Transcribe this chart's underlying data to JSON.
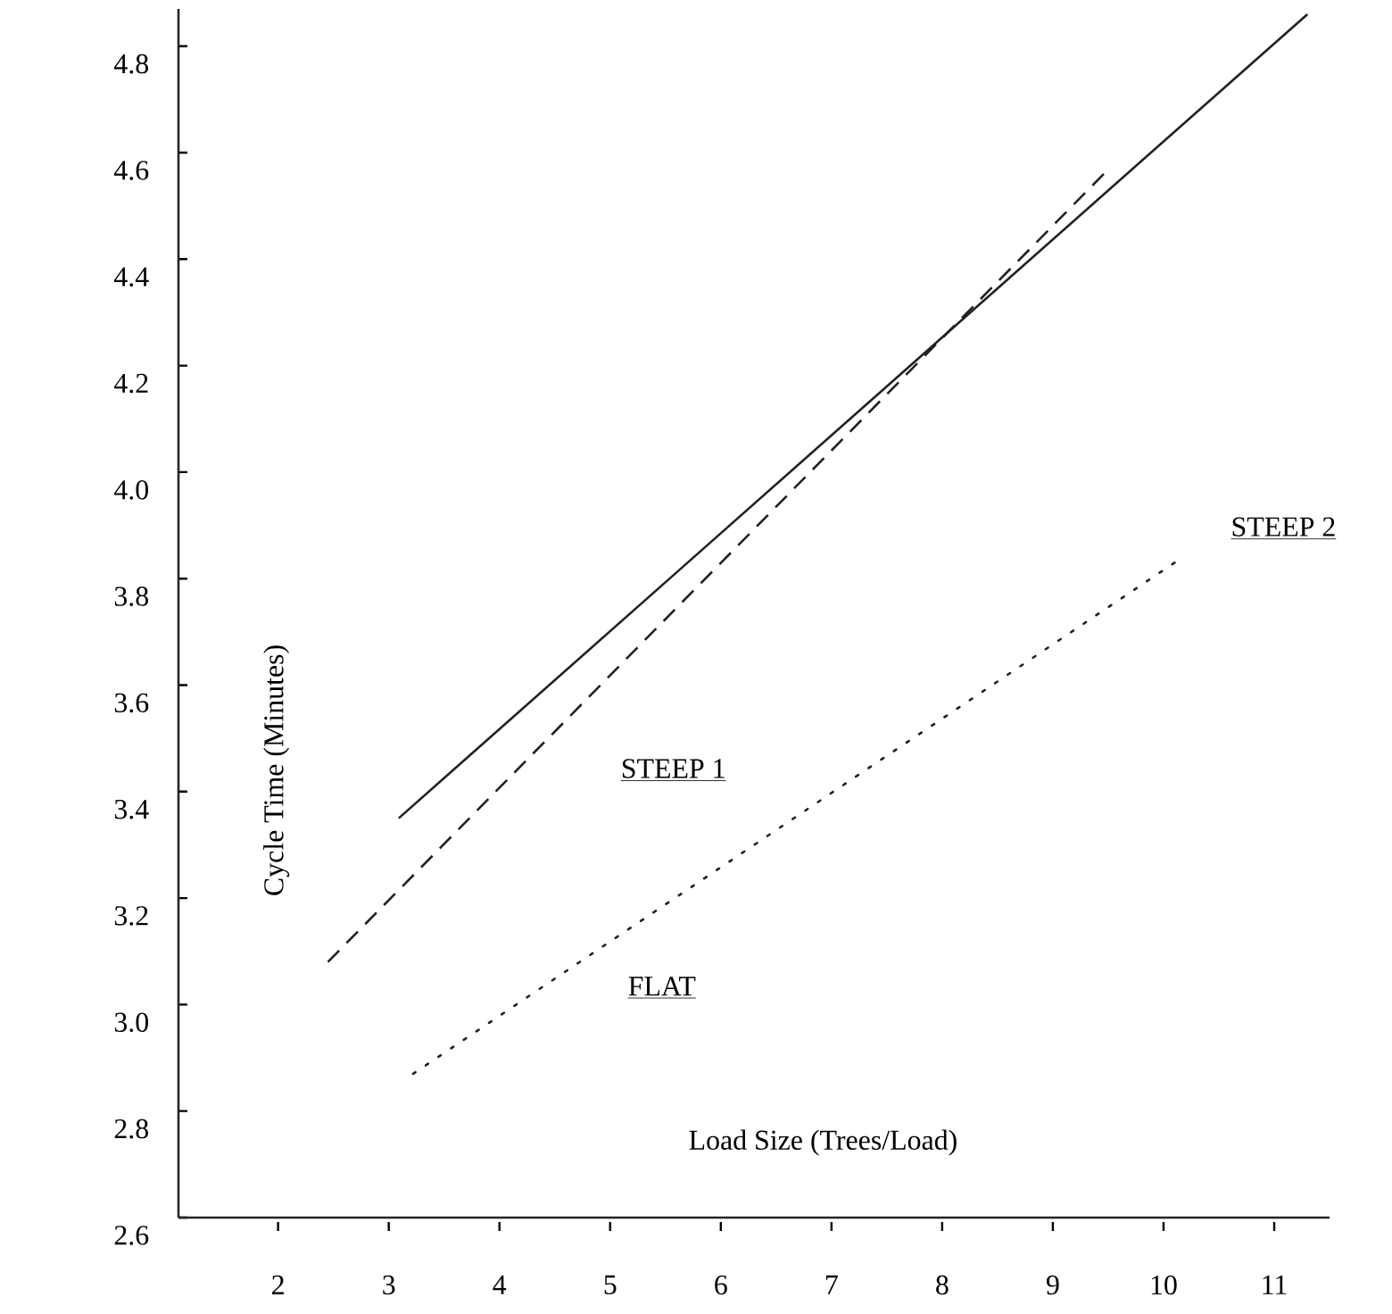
{
  "chart_data": {
    "type": "line",
    "xlabel": "Load Size (Trees/Load)",
    "ylabel": "Cycle Time (Minutes)",
    "xlim": [
      1.1,
      11.5
    ],
    "ylim": [
      2.6,
      4.87
    ],
    "xticks": [
      2,
      3,
      4,
      5,
      6,
      7,
      8,
      9,
      10,
      11
    ],
    "yticks": [
      2.6,
      2.8,
      {
        "value": 3,
        "label": "3.0"
      },
      3.2,
      3.4,
      3.6,
      3.8,
      {
        "value": 4,
        "label": "4.0"
      },
      4.2,
      4.4,
      4.6,
      4.8
    ],
    "grid": false,
    "legend": false,
    "marker": "none",
    "series": [
      {
        "name": "STEEP 2",
        "color": "#231f20",
        "line_style": "solid",
        "x": [
          3.09,
          11.3
        ],
        "values": [
          3.35,
          4.86
        ]
      },
      {
        "name": "STEEP 1",
        "color": "#231f20",
        "line_style": "dashed",
        "x": [
          2.45,
          9.46
        ],
        "values": [
          3.08,
          4.56
        ]
      },
      {
        "name": "FLAT",
        "color": "#231f20",
        "line_style": "dotted",
        "x": [
          3.22,
          10.1
        ],
        "values": [
          2.87,
          3.83
        ]
      }
    ]
  }
}
